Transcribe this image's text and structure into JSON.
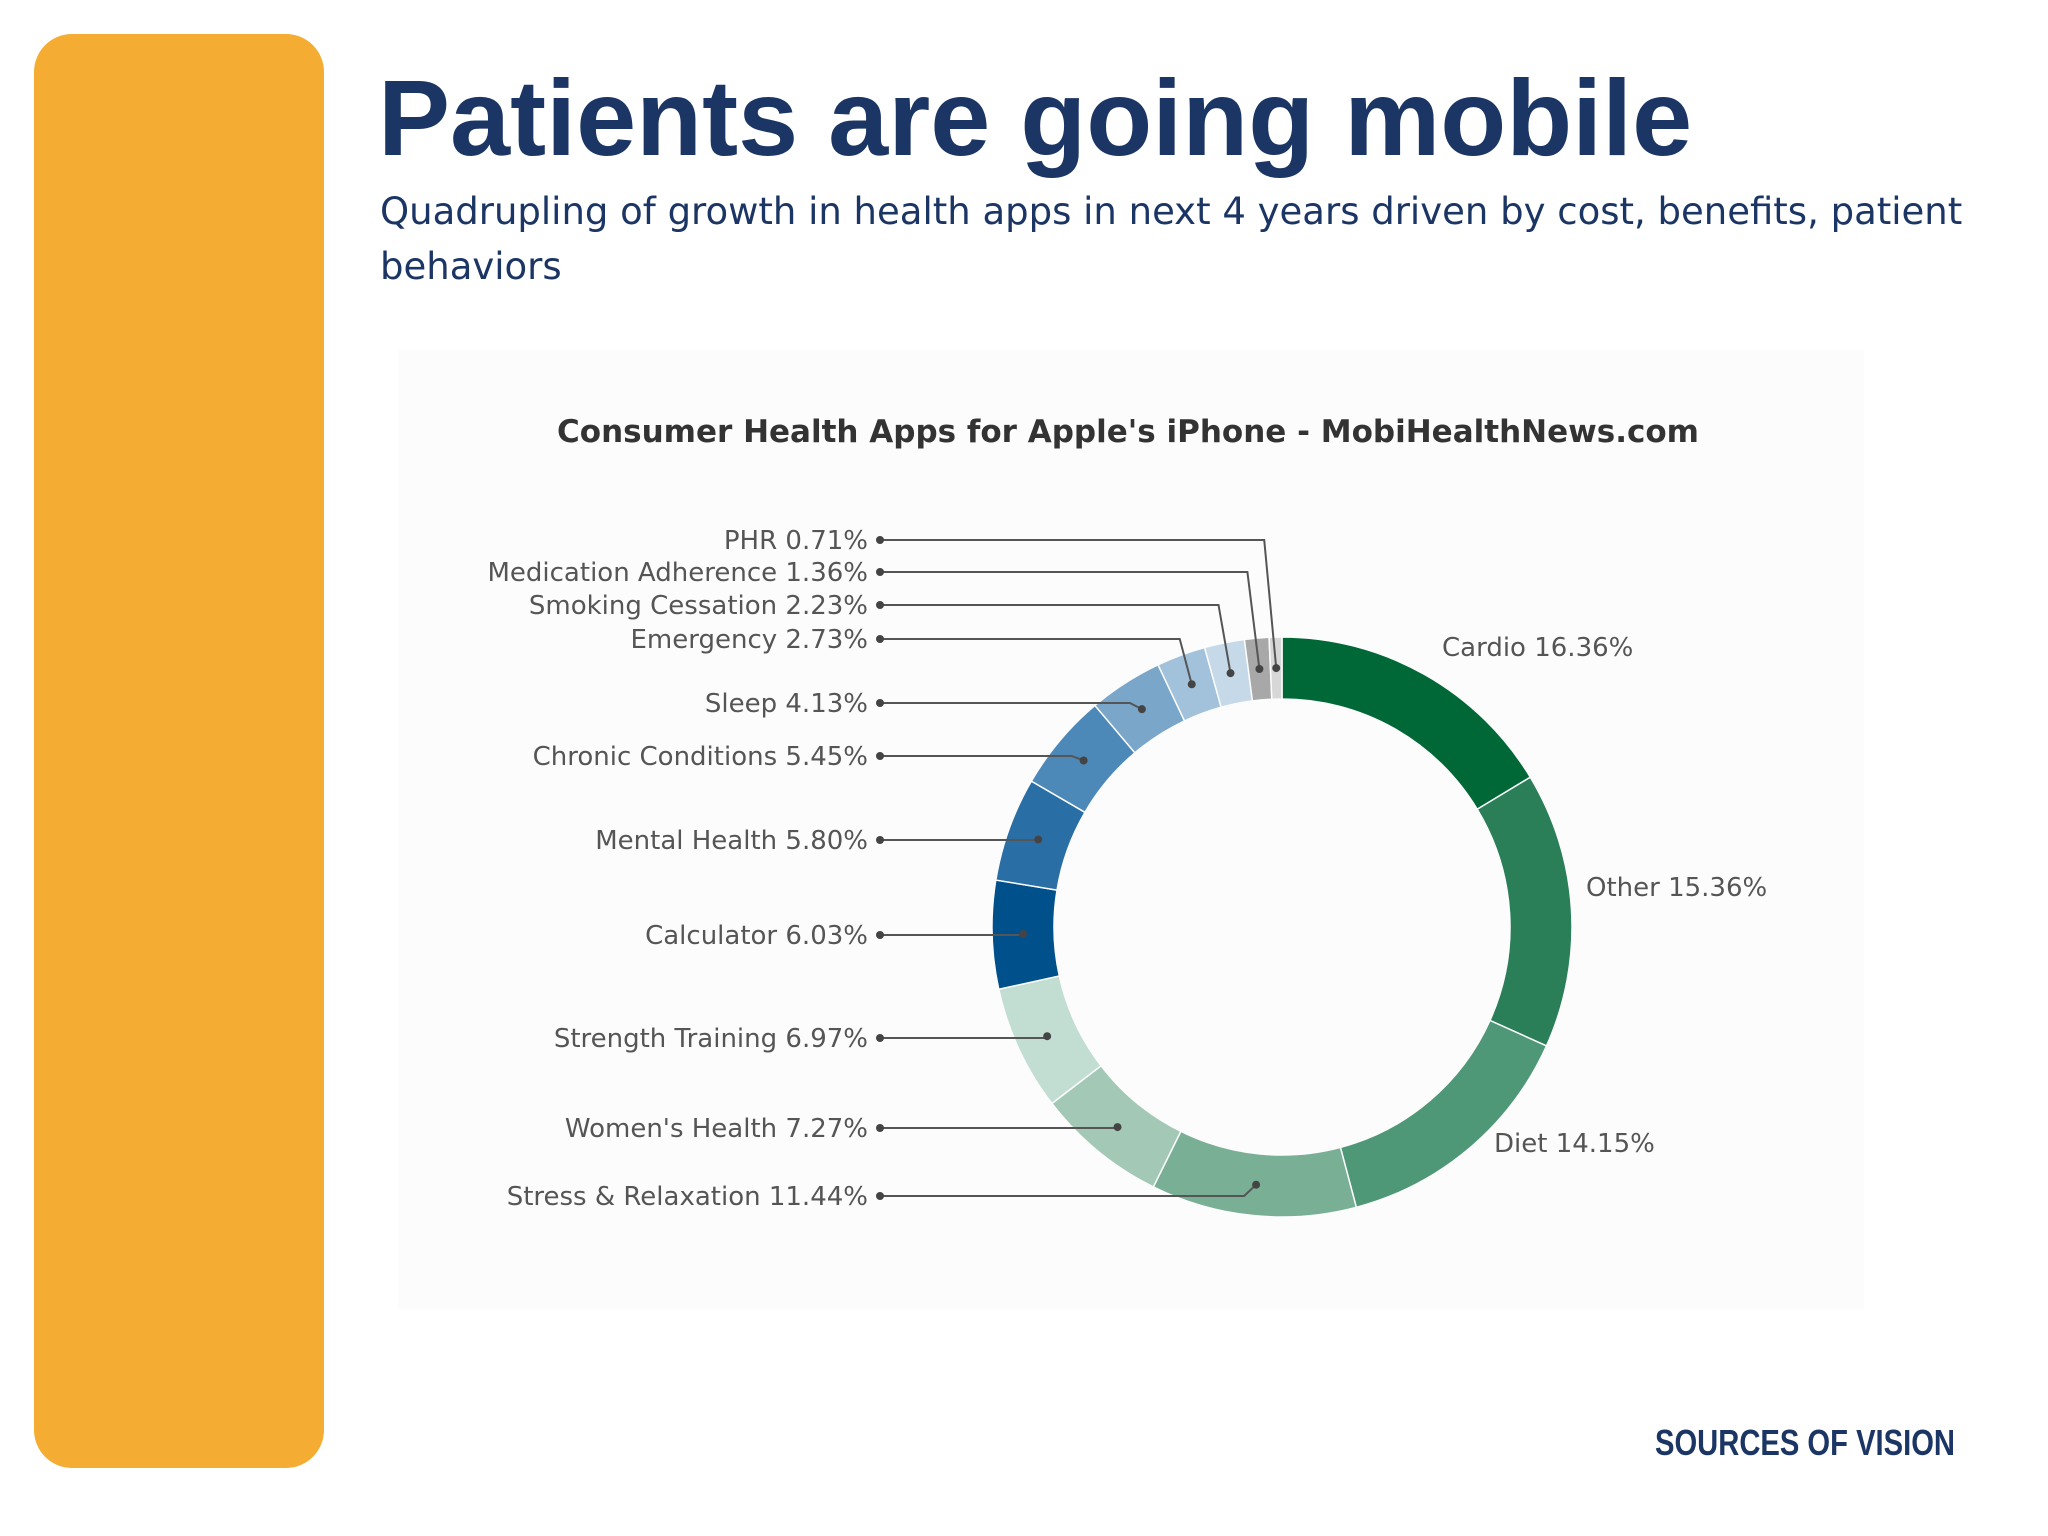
{
  "slide": {
    "title": "Patients are going mobile",
    "subtitle": "Quadrupling of growth in health apps in next 4 years driven by cost, benefits, patient behaviors",
    "accent_color": "#f4ac33",
    "title_color": "#1b3564"
  },
  "footer": {
    "logo_text": "SOURCES OF VISION"
  },
  "chart_data": {
    "type": "pie",
    "variant": "donut",
    "title": "Consumer Health Apps for Apple's iPhone - MobiHealthNews.com",
    "unit": "%",
    "slices": [
      {
        "name": "Cardio",
        "value": 16.36,
        "label": "Cardio 16.36%",
        "color": "#006837"
      },
      {
        "name": "Other",
        "value": 15.36,
        "label": "Other 15.36%",
        "color": "#2a7f58"
      },
      {
        "name": "Diet",
        "value": 14.15,
        "label": "Diet 14.15%",
        "color": "#4f9877"
      },
      {
        "name": "Stress & Relaxation",
        "value": 11.44,
        "label": "Stress & Relaxation 11.44%",
        "color": "#79b095"
      },
      {
        "name": "Women's Health",
        "value": 7.27,
        "label": "Women's Health 7.27%",
        "color": "#a3c9b6"
      },
      {
        "name": "Strength Training",
        "value": 6.97,
        "label": "Strength Training 6.97%",
        "color": "#c2ddd1"
      },
      {
        "name": "Calculator",
        "value": 6.03,
        "label": "Calculator 6.03%",
        "color": "#00508c"
      },
      {
        "name": "Mental Health",
        "value": 5.8,
        "label": "Mental Health 5.80%",
        "color": "#2a6ea6"
      },
      {
        "name": "Chronic Conditions",
        "value": 5.45,
        "label": "Chronic Conditions 5.45%",
        "color": "#4d89b8"
      },
      {
        "name": "Sleep",
        "value": 4.13,
        "label": "Sleep 4.13%",
        "color": "#79a6c9"
      },
      {
        "name": "Emergency",
        "value": 2.73,
        "label": "Emergency 2.73%",
        "color": "#a2c2db"
      },
      {
        "name": "Smoking Cessation",
        "value": 2.23,
        "label": "Smoking Cessation 2.23%",
        "color": "#c5d9e9"
      },
      {
        "name": "Medication Adherence",
        "value": 1.36,
        "label": "Medication Adherence 1.36%",
        "color": "#a8a8a8"
      },
      {
        "name": "PHR",
        "value": 0.71,
        "label": "PHR 0.71%",
        "color": "#d7d7d7"
      }
    ]
  }
}
